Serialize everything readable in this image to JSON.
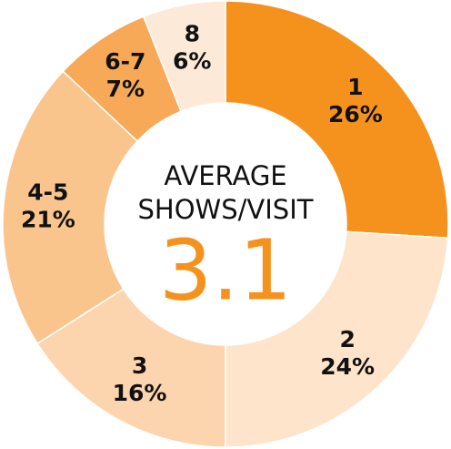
{
  "chart_data": {
    "type": "donut",
    "categories": [
      "1",
      "2",
      "3",
      "4-5",
      "6-7",
      "8"
    ],
    "values": [
      26,
      24,
      16,
      21,
      7,
      6
    ],
    "value_labels": [
      "26%",
      "24%",
      "16%",
      "21%",
      "7%",
      "6%"
    ],
    "colors": [
      "#f5921e",
      "#fde4ca",
      "#fcd5ae",
      "#fac58d",
      "#f7a957",
      "#fde9d7"
    ],
    "center_text": [
      "AVERAGE",
      "SHOWS/VISIT"
    ],
    "center_value": 3.1,
    "center_value_color": "#f5921e"
  }
}
